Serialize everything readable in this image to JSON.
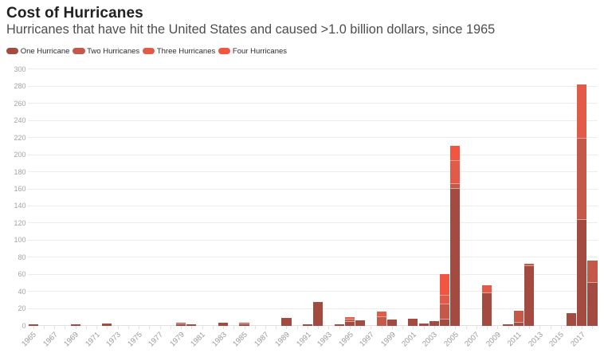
{
  "title": "Cost of Hurricanes",
  "subtitle": "Hurricanes that have hit the United States and caused >1.0 billion dollars, since 1965",
  "legend": {
    "items": [
      {
        "label": "One Hurricane",
        "color": "#a34b40"
      },
      {
        "label": "Two Hurricanes",
        "color": "#c4594a"
      },
      {
        "label": "Three Hurricanes",
        "color": "#e25a48"
      },
      {
        "label": "Four Hurricanes",
        "color": "#f15643"
      }
    ]
  },
  "chart_data": {
    "type": "bar",
    "stacked": true,
    "title": "Cost of Hurricanes",
    "subtitle": "Hurricanes that have hit the United States and caused >1.0 billion dollars, since 1965",
    "xlabel": "",
    "ylabel": "",
    "unit": "billion dollars",
    "grid": "horizontal",
    "legend_position": "top-left",
    "x_range": [
      1965,
      2018
    ],
    "x_tick_label_years": [
      1965,
      1967,
      1969,
      1971,
      1973,
      1975,
      1977,
      1979,
      1981,
      1983,
      1985,
      1987,
      1989,
      1991,
      1993,
      1995,
      1997,
      1999,
      2001,
      2003,
      2005,
      2007,
      2009,
      2011,
      2013,
      2015,
      2017
    ],
    "ylim": [
      0,
      300
    ],
    "y_ticks": [
      0,
      20,
      40,
      60,
      80,
      100,
      120,
      140,
      160,
      180,
      200,
      220,
      240,
      260,
      280,
      300
    ],
    "series": [
      "One Hurricane",
      "Two Hurricanes",
      "Three Hurricanes",
      "Four Hurricanes"
    ],
    "series_colors": [
      "#a34b40",
      "#c4594a",
      "#e25a48",
      "#f15643"
    ],
    "bars": [
      {
        "year": 1965,
        "segments": [
          {
            "series": 1,
            "value": 1.4
          }
        ]
      },
      {
        "year": 1969,
        "segments": [
          {
            "series": 1,
            "value": 1.5
          }
        ]
      },
      {
        "year": 1972,
        "segments": [
          {
            "series": 1,
            "value": 2.1
          }
        ]
      },
      {
        "year": 1979,
        "segments": [
          {
            "series": 1,
            "value": 1.7
          },
          {
            "series": 2,
            "value": 1.9
          }
        ]
      },
      {
        "year": 1980,
        "segments": [
          {
            "series": 1,
            "value": 1.4
          }
        ]
      },
      {
        "year": 1983,
        "segments": [
          {
            "series": 1,
            "value": 3.1
          }
        ]
      },
      {
        "year": 1985,
        "segments": [
          {
            "series": 1,
            "value": 1.4
          },
          {
            "series": 2,
            "value": 1.9
          }
        ]
      },
      {
        "year": 1989,
        "segments": [
          {
            "series": 1,
            "value": 9.2
          }
        ]
      },
      {
        "year": 1991,
        "segments": [
          {
            "series": 1,
            "value": 1.5
          }
        ]
      },
      {
        "year": 1992,
        "segments": [
          {
            "series": 1,
            "value": 27.2
          }
        ]
      },
      {
        "year": 1994,
        "segments": [
          {
            "series": 1,
            "value": 1.5
          }
        ]
      },
      {
        "year": 1995,
        "segments": [
          {
            "series": 1,
            "value": 4.4
          },
          {
            "series": 2,
            "value": 2.9
          },
          {
            "series": 3,
            "value": 3.0
          }
        ]
      },
      {
        "year": 1996,
        "segments": [
          {
            "series": 1,
            "value": 6.0
          }
        ]
      },
      {
        "year": 1998,
        "segments": [
          {
            "series": 2,
            "value": 9.8
          },
          {
            "series": 3,
            "value": 6.4
          }
        ]
      },
      {
        "year": 1999,
        "segments": [
          {
            "series": 1,
            "value": 7.0
          }
        ]
      },
      {
        "year": 2001,
        "segments": [
          {
            "series": 1,
            "value": 8.1
          }
        ]
      },
      {
        "year": 2002,
        "segments": [
          {
            "series": 1,
            "value": 2.3
          }
        ]
      },
      {
        "year": 2003,
        "segments": [
          {
            "series": 1,
            "value": 5.1
          }
        ]
      },
      {
        "year": 2004,
        "segments": [
          {
            "series": 1,
            "value": 7.1
          },
          {
            "series": 2,
            "value": 17.9
          },
          {
            "series": 3,
            "value": 9.7
          },
          {
            "series": 4,
            "value": 25.7
          }
        ]
      },
      {
        "year": 2005,
        "segments": [
          {
            "series": 1,
            "value": 160.1
          },
          {
            "series": 2,
            "value": 5.1
          },
          {
            "series": 3,
            "value": 27.4
          },
          {
            "series": 4,
            "value": 17.9
          }
        ]
      },
      {
        "year": 2008,
        "segments": [
          {
            "series": 1,
            "value": 37.7
          },
          {
            "series": 3,
            "value": 9.4
          }
        ]
      },
      {
        "year": 2010,
        "segments": [
          {
            "series": 1,
            "value": 1.3
          }
        ]
      },
      {
        "year": 2011,
        "segments": [
          {
            "series": 1,
            "value": 3.3
          },
          {
            "series": 2,
            "value": 13.9
          }
        ]
      },
      {
        "year": 2012,
        "segments": [
          {
            "series": 1,
            "value": 69.1
          },
          {
            "series": 2,
            "value": 2.8
          }
        ]
      },
      {
        "year": 2016,
        "segments": [
          {
            "series": 1,
            "value": 14.1
          }
        ]
      },
      {
        "year": 2017,
        "segments": [
          {
            "series": 1,
            "value": 124.1
          },
          {
            "series": 2,
            "value": 95.1
          },
          {
            "series": 3,
            "value": 63.2
          }
        ]
      },
      {
        "year": 2018,
        "segments": [
          {
            "series": 1,
            "value": 49.9
          },
          {
            "series": 2,
            "value": 26.0
          }
        ]
      }
    ]
  }
}
